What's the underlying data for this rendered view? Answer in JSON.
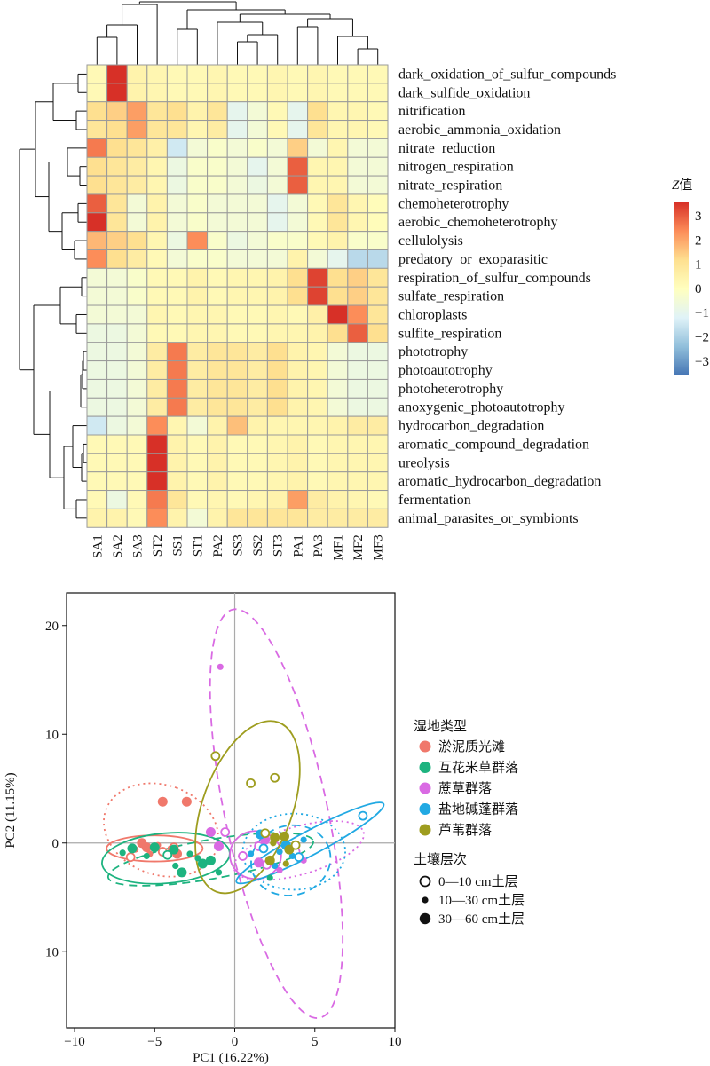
{
  "chart_data": [
    {
      "type": "heatmap",
      "columns": [
        "SA1",
        "SA2",
        "SA3",
        "ST2",
        "SS1",
        "ST1",
        "PA2",
        "SS3",
        "SS2",
        "ST3",
        "PA1",
        "PA3",
        "MF1",
        "MF2",
        "MF3"
      ],
      "rows": [
        "dark_oxidation_of_sulfur_compounds",
        "dark_sulfide_oxidation",
        "nitrification",
        "aerobic_ammonia_oxidation",
        "nitrate_reduction",
        "nitrogen_respiration",
        "nitrate_respiration",
        "chemoheterotrophy",
        "aerobic_chemoheterotrophy",
        "cellulolysis",
        "predatory_or_exoparasitic",
        "respiration_of_sulfur_compounds",
        "sulfate_respiration",
        "chloroplasts",
        "sulfite_respiration",
        "phototrophy",
        "photoautotrophy",
        "photoheterotrophy",
        "anoxygenic_photoautotrophy",
        "hydrocarbon_degradation",
        "aromatic_compound_degradation",
        "ureolysis",
        "aromatic_hydrocarbon_degradation",
        "fermentation",
        "animal_parasites_or_symbionts"
      ],
      "values": [
        [
          0.2,
          3.5,
          0.4,
          0.3,
          0.2,
          0.2,
          0.3,
          0.2,
          0.2,
          0.3,
          0.2,
          0.3,
          0.2,
          0.2,
          0.2
        ],
        [
          0.2,
          3.5,
          0.4,
          0.3,
          0.2,
          0.2,
          0.3,
          0.2,
          0.2,
          0.3,
          0.2,
          0.3,
          0.2,
          0.2,
          0.2
        ],
        [
          1.0,
          1.2,
          1.8,
          0.8,
          1.0,
          0.4,
          0.8,
          -0.8,
          -0.4,
          0.2,
          -0.8,
          1.0,
          0.3,
          0.3,
          0.2
        ],
        [
          0.8,
          1.0,
          1.8,
          0.8,
          0.8,
          0.3,
          0.6,
          -0.8,
          -0.4,
          0.2,
          -0.8,
          0.8,
          0.3,
          0.3,
          0.2
        ],
        [
          2.2,
          1.0,
          0.8,
          0.5,
          -1.2,
          -0.4,
          -0.2,
          -0.4,
          -0.2,
          -0.4,
          1.2,
          -0.4,
          0.3,
          -0.4,
          -0.4
        ],
        [
          1.0,
          0.8,
          0.6,
          0.3,
          -0.6,
          -0.2,
          -0.2,
          -0.4,
          -0.8,
          -0.4,
          2.5,
          0.3,
          0.3,
          -0.4,
          -0.4
        ],
        [
          1.0,
          0.8,
          0.6,
          0.3,
          -0.6,
          -0.2,
          -0.2,
          -0.4,
          -0.6,
          -0.4,
          2.5,
          0.3,
          0.3,
          -0.4,
          -0.4
        ],
        [
          2.5,
          0.8,
          -0.4,
          0.4,
          -0.4,
          -0.2,
          -0.4,
          -0.4,
          -0.4,
          -0.8,
          -0.4,
          0.2,
          0.8,
          0.3,
          0.1
        ],
        [
          3.0,
          0.8,
          -0.4,
          0.4,
          -0.4,
          -0.2,
          -0.4,
          -0.4,
          -0.4,
          -0.8,
          -0.4,
          0.2,
          0.8,
          0.3,
          0.1
        ],
        [
          1.5,
          1.2,
          1.0,
          0.3,
          -0.6,
          2.0,
          -0.2,
          -0.6,
          -0.4,
          -0.2,
          -0.2,
          0.2,
          0.4,
          -0.2,
          -0.2
        ],
        [
          2.0,
          1.0,
          0.6,
          0.2,
          -0.4,
          -0.2,
          -0.2,
          -0.4,
          -0.4,
          -0.4,
          0.4,
          -0.4,
          -0.8,
          -1.5,
          -1.5
        ],
        [
          -0.4,
          -0.4,
          -0.2,
          0.2,
          0.2,
          0.4,
          0.2,
          0.3,
          0.3,
          0.4,
          1.0,
          2.8,
          1.0,
          1.2,
          0.8
        ],
        [
          -0.4,
          -0.4,
          -0.2,
          0.2,
          0.2,
          0.4,
          0.2,
          0.3,
          0.3,
          0.4,
          1.0,
          2.8,
          1.0,
          1.2,
          0.8
        ],
        [
          -0.4,
          -0.4,
          -0.4,
          0.3,
          0.2,
          0.3,
          0.3,
          0.2,
          0.2,
          0.3,
          0.2,
          0.5,
          3.0,
          2.0,
          0.8
        ],
        [
          -0.6,
          -0.6,
          -0.4,
          0.2,
          0.2,
          0.3,
          0.3,
          0.2,
          0.2,
          0.3,
          0.3,
          0.4,
          1.0,
          2.5,
          1.0
        ],
        [
          -0.6,
          -0.6,
          -0.4,
          0.6,
          2.2,
          0.6,
          0.8,
          0.8,
          0.6,
          1.0,
          0.4,
          0.3,
          -0.4,
          -0.6,
          -0.6
        ],
        [
          -0.6,
          -0.6,
          -0.4,
          0.6,
          2.2,
          0.6,
          0.8,
          0.8,
          0.6,
          1.0,
          0.4,
          0.3,
          -0.4,
          -0.6,
          -0.6
        ],
        [
          -0.6,
          -0.6,
          -0.4,
          0.6,
          2.2,
          0.6,
          0.8,
          0.8,
          0.6,
          1.0,
          0.4,
          0.3,
          -0.4,
          -0.6,
          -0.6
        ],
        [
          -0.6,
          -0.6,
          -0.4,
          0.6,
          2.2,
          0.6,
          0.8,
          0.8,
          0.6,
          1.0,
          0.4,
          0.3,
          -0.4,
          -0.6,
          -0.6
        ],
        [
          -1.2,
          -0.6,
          -0.4,
          2.0,
          0.3,
          -0.4,
          0.4,
          1.4,
          0.4,
          0.3,
          0.3,
          0.3,
          0.4,
          0.6,
          0.6
        ],
        [
          0.2,
          0.2,
          0.2,
          3.5,
          0.4,
          0.2,
          0.4,
          0.2,
          0.2,
          0.3,
          0.4,
          0.2,
          0.3,
          0.3,
          0.3
        ],
        [
          0.2,
          0.2,
          0.2,
          3.5,
          0.4,
          0.2,
          0.4,
          0.2,
          0.2,
          0.3,
          0.4,
          0.2,
          0.3,
          0.3,
          0.3
        ],
        [
          0.2,
          0.2,
          0.2,
          3.5,
          0.4,
          0.2,
          0.4,
          0.2,
          0.2,
          0.3,
          0.4,
          0.2,
          0.3,
          0.3,
          0.3
        ],
        [
          0.2,
          -0.6,
          0.2,
          2.2,
          0.8,
          0.2,
          0.3,
          0.2,
          0.3,
          0.4,
          1.8,
          0.6,
          0.4,
          0.3,
          0.2
        ],
        [
          0.4,
          0.4,
          0.2,
          2.0,
          0.4,
          -0.4,
          0.4,
          0.8,
          0.8,
          0.8,
          0.8,
          0.6,
          0.6,
          0.6,
          0.6
        ]
      ],
      "colorbar": {
        "title_prefix": "Z",
        "title_suffix": "值",
        "ticks": [
          "3",
          "2",
          "1",
          "0",
          "−1",
          "−2",
          "−3"
        ],
        "colors": [
          "#4575b4",
          "#91bfdb",
          "#e0f3f8",
          "#ffffbf",
          "#fee090",
          "#fc8d59",
          "#d73027"
        ]
      }
    },
    {
      "type": "scatter",
      "xlabel": "PC1 (16.22%)",
      "ylabel": "PC2 (11.15%)",
      "xlim": [
        -10.5,
        10
      ],
      "ylim": [
        -17,
        23
      ],
      "xticks": [
        "−10",
        "−5",
        "0",
        "5",
        "10"
      ],
      "yticks": [
        "−10",
        "0",
        "10",
        "20"
      ],
      "legend_wetland_title": "湿地类型",
      "legend_layer_title": "土壤层次",
      "series": [
        {
          "name": "淤泥质光滩",
          "color": "#f0786b",
          "points": [
            [
              -4.5,
              3.8,
              2
            ],
            [
              -3,
              3.8,
              2
            ],
            [
              -6.2,
              -0.6,
              1
            ],
            [
              -5.5,
              -0.4,
              2
            ],
            [
              -4.5,
              -0.8,
              0
            ],
            [
              -4,
              -0.5,
              1
            ],
            [
              -3.6,
              -1,
              2
            ],
            [
              -6.5,
              -1.3,
              0
            ],
            [
              -4.8,
              -0.2,
              1
            ],
            [
              -5.8,
              0,
              2
            ],
            [
              -3.8,
              -0.4,
              0
            ],
            [
              -5.3,
              -1,
              1
            ]
          ],
          "ellipses": [
            {
              "cx": -4.6,
              "cy": 1.2,
              "rx": 2.8,
              "ry": 5.4,
              "angle": -70,
              "style": "dotted"
            },
            {
              "cx": -5,
              "cy": -0.5,
              "rx": 3,
              "ry": 1.2,
              "angle": 0,
              "style": "solid"
            }
          ]
        },
        {
          "name": "互花米草群落",
          "color": "#1db37f",
          "points": [
            [
              -7,
              -0.9,
              1
            ],
            [
              -6.4,
              -0.5,
              2
            ],
            [
              -5.5,
              -1.2,
              1
            ],
            [
              -5,
              -0.4,
              2
            ],
            [
              -4.2,
              -1.1,
              0
            ],
            [
              -3.8,
              -0.6,
              2
            ],
            [
              -3.3,
              -2.7,
              2
            ],
            [
              -2.8,
              -1,
              1
            ],
            [
              -2.3,
              -1.4,
              1
            ],
            [
              -2,
              -1.9,
              2
            ],
            [
              -1.5,
              -1.6,
              2
            ],
            [
              -3.7,
              -2.1,
              1
            ],
            [
              -1,
              -2.7,
              1
            ],
            [
              2.2,
              -3.2,
              1
            ]
          ],
          "ellipses": [
            {
              "cx": -4.3,
              "cy": -1.4,
              "rx": 4,
              "ry": 2.3,
              "angle": -5,
              "style": "solid"
            },
            {
              "cx": -1.5,
              "cy": -1.5,
              "rx": 6.5,
              "ry": 1.8,
              "angle": -10,
              "style": "dashed"
            }
          ]
        },
        {
          "name": "蔗草群落",
          "color": "#d96ae3",
          "points": [
            [
              -0.9,
              16.2,
              1
            ],
            [
              -1.5,
              1,
              2
            ],
            [
              -0.6,
              1,
              0
            ],
            [
              -1,
              -0.3,
              2
            ],
            [
              1.5,
              -0.3,
              0
            ],
            [
              1.9,
              0.3,
              2
            ],
            [
              0.5,
              -1.2,
              0
            ],
            [
              1.5,
              -1.8,
              2
            ],
            [
              2,
              -2,
              0
            ],
            [
              4.3,
              -1.6,
              1
            ],
            [
              2.8,
              -2.5,
              1
            ],
            [
              3.8,
              -0.8,
              0
            ]
          ],
          "ellipses": [
            {
              "cx": 2.6,
              "cy": 2.7,
              "rx": 3.2,
              "ry": 19.2,
              "angle": -12,
              "style": "dashed"
            },
            {
              "cx": 1.3,
              "cy": -1.1,
              "rx": 1.6,
              "ry": 2.2,
              "angle": 0,
              "style": "solid"
            },
            {
              "cx": 4,
              "cy": -0.7,
              "rx": 4.2,
              "ry": 2.2,
              "angle": -16,
              "style": "dotted"
            }
          ]
        },
        {
          "name": "盐地碱蓬群落",
          "color": "#21a9e3",
          "points": [
            [
              8,
              2.5,
              0
            ],
            [
              4.3,
              0.3,
              1
            ],
            [
              3.6,
              -1.2,
              1
            ],
            [
              2.5,
              -2.1,
              1
            ],
            [
              1.6,
              0.8,
              2
            ],
            [
              1.8,
              -0.5,
              0
            ],
            [
              1,
              -1,
              1
            ],
            [
              3.2,
              -0.2,
              2
            ],
            [
              2.8,
              -0.8,
              1
            ],
            [
              4,
              -1.3,
              0
            ]
          ],
          "ellipses": [
            {
              "cx": 4.7,
              "cy": 0,
              "rx": 5.2,
              "ry": 1.1,
              "angle": -28,
              "style": "solid"
            },
            {
              "cx": 3.7,
              "cy": -0.8,
              "rx": 3.2,
              "ry": 3.5,
              "angle": 0,
              "style": "dotted"
            },
            {
              "cx": 3.5,
              "cy": -1.6,
              "rx": 2.5,
              "ry": 3.2,
              "angle": -15,
              "style": "dashed"
            }
          ]
        },
        {
          "name": "芦苇群落",
          "color": "#9e9d1f",
          "points": [
            [
              -1.2,
              8,
              0
            ],
            [
              1,
              5.5,
              0
            ],
            [
              2.5,
              6,
              0
            ],
            [
              2.5,
              0.5,
              2
            ],
            [
              3.1,
              0.6,
              2
            ],
            [
              3.4,
              -0.6,
              2
            ],
            [
              2.2,
              -1.6,
              2
            ],
            [
              1.9,
              0.9,
              0
            ],
            [
              3.2,
              -1.9,
              1
            ],
            [
              2.4,
              0,
              1
            ],
            [
              3.8,
              -0.2,
              0
            ]
          ],
          "ellipses": [
            {
              "cx": 0.8,
              "cy": 3.3,
              "rx": 2.8,
              "ry": 8.3,
              "angle": 20,
              "style": "solid"
            }
          ]
        }
      ],
      "legend_layers": [
        "0—10 cm土层",
        "10—30 cm土层",
        "30—60 cm土层"
      ]
    }
  ]
}
